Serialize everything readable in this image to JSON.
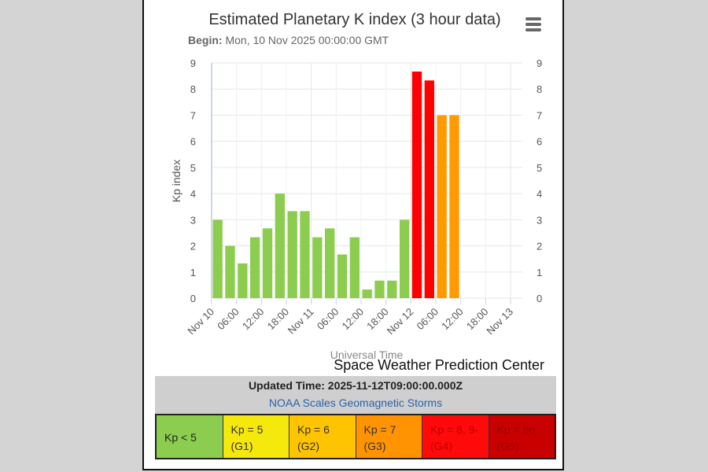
{
  "chart_data": {
    "type": "bar",
    "title": "Estimated Planetary K index (3 hour data)",
    "subtitle_label": "Begin:",
    "subtitle_value": "Mon, 10 Nov 2025 00:00:00 GMT",
    "xlabel": "Universal Time",
    "ylabel": "Kp index",
    "credit": "Space Weather Prediction Center",
    "ylim": [
      0,
      9
    ],
    "yticks": [
      0,
      1,
      2,
      3,
      4,
      5,
      6,
      7,
      8,
      9
    ],
    "xticks": [
      "Nov 10",
      "06:00",
      "12:00",
      "18:00",
      "Nov 11",
      "06:00",
      "12:00",
      "18:00",
      "Nov 12",
      "06:00",
      "12:00",
      "18:00",
      "Nov 13"
    ],
    "xlim_hours": [
      0,
      72
    ],
    "bin_hours": 3,
    "grid": true,
    "values": [
      3,
      2,
      1.33,
      2.33,
      2.67,
      4,
      3.33,
      3.33,
      2.33,
      2.67,
      1.67,
      2.33,
      0.33,
      0.67,
      0.67,
      3,
      8.67,
      8.33,
      7,
      7
    ],
    "color_rule": {
      "below_5": "#8ccd4f",
      "5": "#f5e80c",
      "6": "#ffc000",
      "7": "#ff9a00",
      "8": "#ff0000",
      "9": "#c80000"
    }
  },
  "footer": {
    "updated": "Updated Time: 2025-11-12T09:00:00.000Z",
    "noaa_link": "NOAA Scales Geomagnetic Storms",
    "scales": [
      {
        "line1": "Kp < 5",
        "line2": "",
        "bg": "#8ccd4f",
        "fg": "#222"
      },
      {
        "line1": "Kp = 5",
        "line2": "(G1)",
        "bg": "#f5e80c",
        "fg": "#333"
      },
      {
        "line1": "Kp = 6",
        "line2": "(G2)",
        "bg": "#ffc400",
        "fg": "#333"
      },
      {
        "line1": "Kp = 7",
        "line2": "(G3)",
        "bg": "#ff9400",
        "fg": "#333"
      },
      {
        "line1": "Kp = 8, 9-",
        "line2": "(G4)",
        "bg": "#ff0a0a",
        "fg": "#c00000"
      },
      {
        "line1": "Kp = 9o",
        "line2": "(G5)",
        "bg": "#c80000",
        "fg": "#a00000"
      }
    ]
  }
}
